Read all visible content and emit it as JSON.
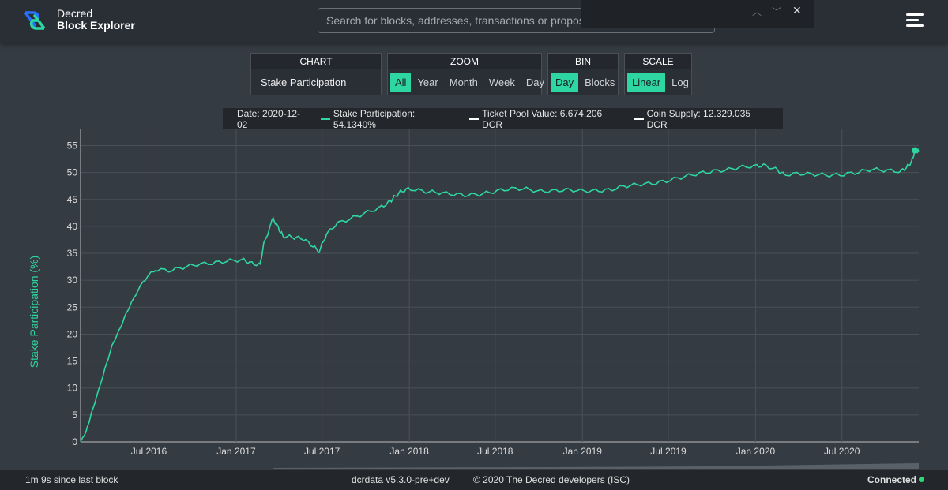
{
  "header": {
    "brand_line1": "Decred",
    "brand_line2": "Block Explorer",
    "search_placeholder": "Search for blocks, addresses, transactions or proposal to"
  },
  "controls": {
    "chart": {
      "title": "CHART",
      "value": "Stake Participation"
    },
    "zoom": {
      "title": "ZOOM",
      "options": [
        "All",
        "Year",
        "Month",
        "Week",
        "Day"
      ],
      "active": "All"
    },
    "bin": {
      "title": "BIN",
      "options": [
        "Day",
        "Blocks"
      ],
      "active": "Day"
    },
    "scale": {
      "title": "SCALE",
      "options": [
        "Linear",
        "Log"
      ],
      "active": "Linear"
    }
  },
  "legend": {
    "date": "Date: 2020-12-02",
    "stake": "Stake Participation: 54.1340%",
    "pool": "Ticket Pool Value: 6.674.206 DCR",
    "supply": "Coin Supply: 12.329.035 DCR"
  },
  "footer": {
    "since_block": "1m  9s since last block",
    "version": "dcrdata v5.3.0-pre+dev",
    "copyright": "© 2020 The Decred developers (ISC)",
    "status": "Connected"
  },
  "colors": {
    "series": "#2ed6a1",
    "accent": "#2ed6a1",
    "status": "#2ed67a"
  },
  "chart_data": {
    "type": "line",
    "title": "",
    "xlabel": "",
    "ylabel": "Stake Participation (%)",
    "x_ticks": [
      "Jul 2016",
      "Jan 2017",
      "Jul 2017",
      "Jan 2018",
      "Jul 2018",
      "Jan 2019",
      "Jul 2019",
      "Jan 2020",
      "Jul 2020"
    ],
    "y_ticks": [
      0,
      5,
      10,
      15,
      20,
      25,
      30,
      35,
      40,
      45,
      50,
      55
    ],
    "ylim": [
      0,
      58
    ],
    "xlim": [
      "2016-02-08",
      "2020-12-10"
    ],
    "grid": true,
    "series": [
      {
        "name": "Stake Participation",
        "x": [
          "2016-02-08",
          "2016-02-20",
          "2016-03-01",
          "2016-03-15",
          "2016-04-01",
          "2016-04-15",
          "2016-05-01",
          "2016-05-15",
          "2016-06-01",
          "2016-06-20",
          "2016-07-15",
          "2016-08-15",
          "2016-09-15",
          "2016-10-15",
          "2016-11-15",
          "2016-12-15",
          "2017-01-15",
          "2017-02-01",
          "2017-02-20",
          "2017-03-01",
          "2017-03-20",
          "2017-04-01",
          "2017-04-10",
          "2017-05-01",
          "2017-05-20",
          "2017-06-10",
          "2017-06-25",
          "2017-07-10",
          "2017-08-01",
          "2017-09-01",
          "2017-10-01",
          "2017-11-01",
          "2017-11-20",
          "2017-12-01",
          "2017-12-15",
          "2018-01-01",
          "2018-02-01",
          "2018-03-01",
          "2018-04-01",
          "2018-05-01",
          "2018-06-01",
          "2018-07-01",
          "2018-08-01",
          "2018-09-01",
          "2018-10-01",
          "2018-11-01",
          "2018-12-01",
          "2019-01-01",
          "2019-02-01",
          "2019-03-01",
          "2019-04-01",
          "2019-05-01",
          "2019-06-01",
          "2019-07-01",
          "2019-08-01",
          "2019-09-01",
          "2019-10-01",
          "2019-11-01",
          "2019-12-01",
          "2020-01-01",
          "2020-01-20",
          "2020-02-15",
          "2020-03-01",
          "2020-04-01",
          "2020-05-01",
          "2020-06-01",
          "2020-07-01",
          "2020-08-01",
          "2020-09-01",
          "2020-10-01",
          "2020-11-01",
          "2020-11-15",
          "2020-11-25",
          "2020-12-02",
          "2020-12-10"
        ],
        "y": [
          0,
          2,
          5,
          9,
          14,
          18,
          21,
          24,
          27,
          30,
          32,
          31.8,
          32.5,
          33,
          33.2,
          33.6,
          33.8,
          33.2,
          32.8,
          37,
          41.5,
          39.5,
          38.2,
          38,
          37.8,
          36.5,
          35.3,
          38.5,
          40.5,
          41.5,
          42.5,
          43.5,
          44.5,
          45.5,
          46.5,
          47,
          46.5,
          46.3,
          46,
          45.8,
          46,
          46.5,
          47,
          47,
          46.5,
          46.6,
          46.8,
          46.6,
          46.6,
          46.8,
          47.5,
          47.8,
          48,
          48.5,
          49.2,
          49.8,
          50.2,
          50.5,
          51,
          51.2,
          51.3,
          50.5,
          49.6,
          49.8,
          49.7,
          49.5,
          49.6,
          50,
          50.6,
          50.4,
          50.2,
          51,
          52,
          54.1,
          53.8
        ]
      }
    ]
  }
}
